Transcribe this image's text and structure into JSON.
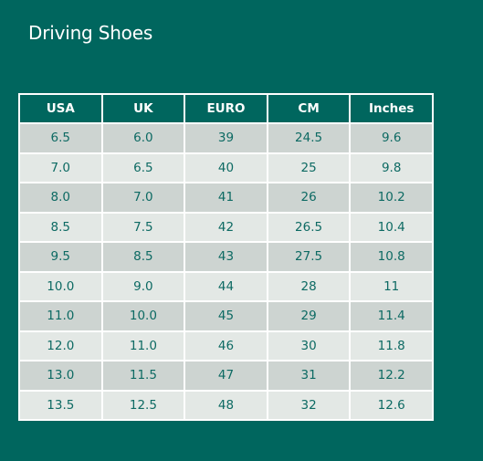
{
  "page": {
    "title": "Driving Shoes"
  },
  "colors": {
    "background": "#00665e",
    "header_background": "#00665e",
    "row_odd": "#cdd4d1",
    "row_even": "#e3e8e5",
    "cell_text": "#0d6a63",
    "header_text": "#ffffff"
  },
  "table": {
    "columns": [
      "USA",
      "UK",
      "EURO",
      "CM",
      "Inches"
    ],
    "rows": [
      [
        "6.5",
        "6.0",
        "39",
        "24.5",
        "9.6"
      ],
      [
        "7.0",
        "6.5",
        "40",
        "25",
        "9.8"
      ],
      [
        "8.0",
        "7.0",
        "41",
        "26",
        "10.2"
      ],
      [
        "8.5",
        "7.5",
        "42",
        "26.5",
        "10.4"
      ],
      [
        "9.5",
        "8.5",
        "43",
        "27.5",
        "10.8"
      ],
      [
        "10.0",
        "9.0",
        "44",
        "28",
        "11"
      ],
      [
        "11.0",
        "10.0",
        "45",
        "29",
        "11.4"
      ],
      [
        "12.0",
        "11.0",
        "46",
        "30",
        "11.8"
      ],
      [
        "13.0",
        "11.5",
        "47",
        "31",
        "12.2"
      ],
      [
        "13.5",
        "12.5",
        "48",
        "32",
        "12.6"
      ]
    ]
  }
}
